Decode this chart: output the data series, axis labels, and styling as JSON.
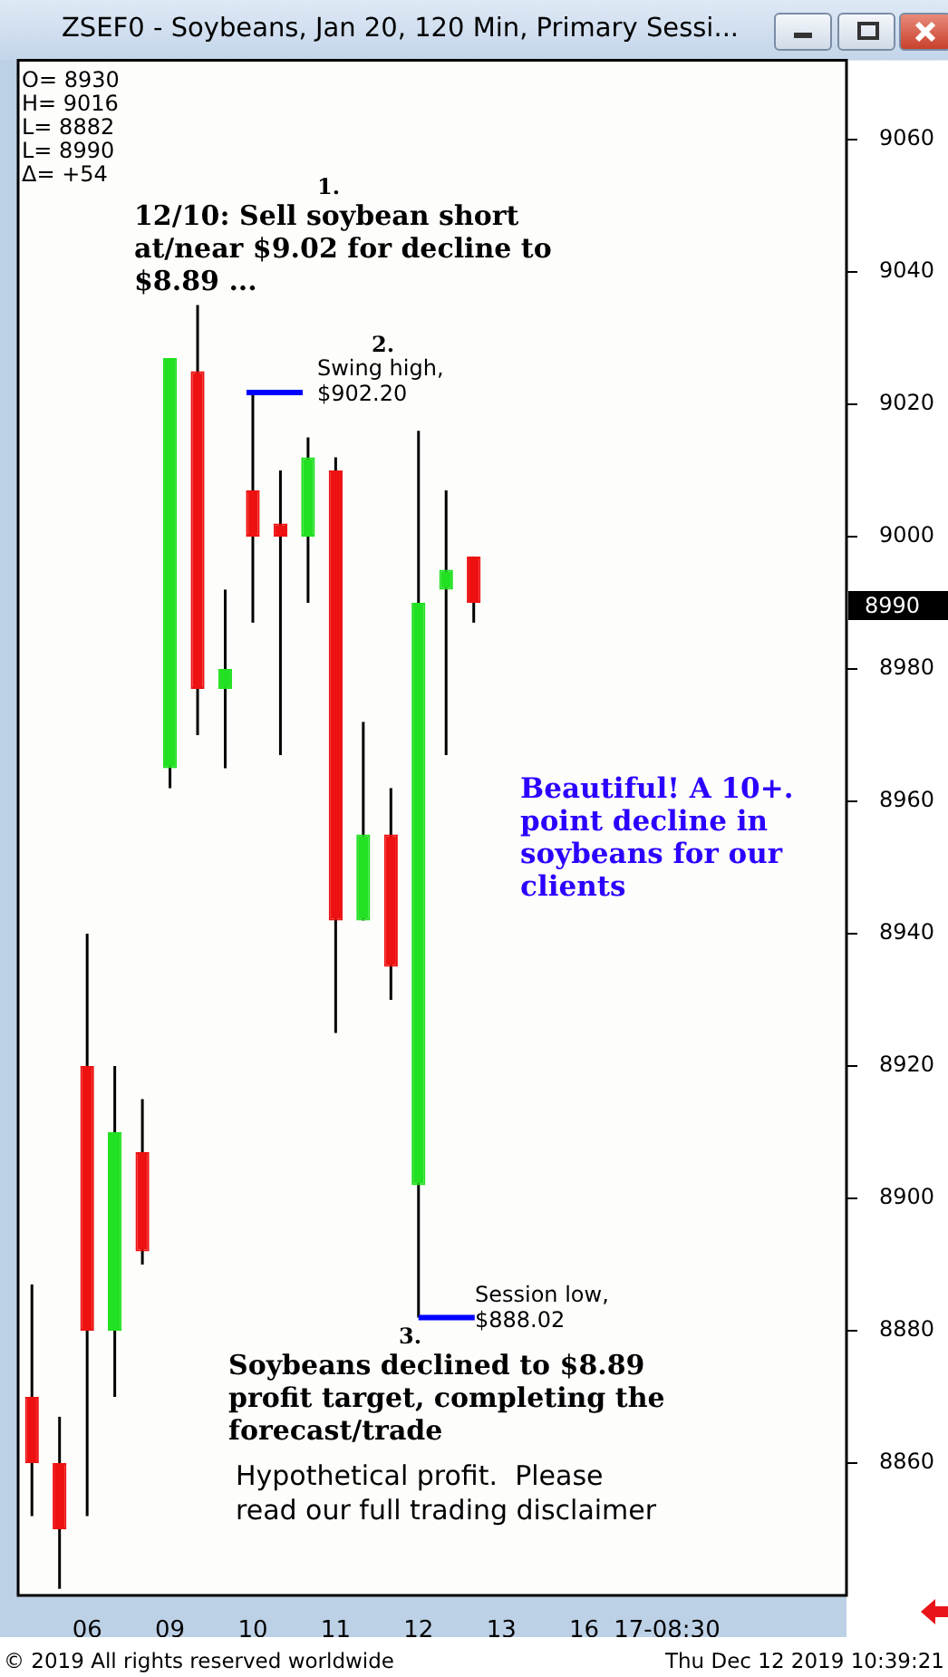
{
  "chart_data": {
    "type": "candlestick",
    "title": "ZSEF0 - Soybeans, Jan 20, 120 Min, Primary Sessi...",
    "categories": [
      null,
      null,
      "06",
      null,
      null,
      "09",
      null,
      null,
      "10",
      null,
      null,
      "11",
      null,
      null,
      "12",
      null,
      null,
      "13",
      null,
      null,
      "16",
      null,
      null,
      "17-08:30",
      null,
      null,
      null,
      null,
      null,
      null
    ],
    "ohlc": [
      [
        8870,
        8887,
        8852,
        8860
      ],
      [
        8860,
        8867,
        8841,
        8850
      ],
      [
        8920,
        8940,
        8852,
        8880
      ],
      [
        8880,
        8920,
        8870,
        8910
      ],
      [
        8907,
        8915,
        8890,
        8892
      ],
      [
        8965,
        9027,
        8962,
        9027
      ],
      [
        9025,
        9035,
        8970,
        8977
      ],
      [
        8977,
        8992,
        8965,
        8980
      ],
      [
        9007,
        9022,
        8987,
        9000
      ],
      [
        9002,
        9010,
        8967,
        9000
      ],
      [
        9000,
        9015,
        8990,
        9012
      ],
      [
        9010,
        9012,
        8925,
        8942
      ],
      [
        8942,
        8972,
        8942,
        8955
      ],
      [
        8955,
        8962,
        8930,
        8935
      ],
      [
        8902,
        9016,
        8882,
        8990
      ],
      [
        8992,
        9007,
        8967,
        8995
      ],
      [
        8997,
        8997,
        8987,
        8990
      ],
      null,
      null,
      null,
      null,
      null,
      null,
      null,
      null,
      null,
      null,
      null,
      null,
      null
    ],
    "colors": [
      "#ee1111",
      "#ee1111",
      "#ee1111",
      "#22e022",
      "#ee1111",
      "#22e022",
      "#ee1111",
      "#22e022",
      "#ee1111",
      "#ee1111",
      "#22e022",
      "#ee1111",
      "#22e022",
      "#ee1111",
      "#22e022",
      "#22e022",
      "#ee1111",
      null,
      null,
      null,
      null,
      null,
      null,
      null,
      null,
      null,
      null,
      null,
      null,
      null
    ],
    "ylim": [
      8840,
      9072
    ],
    "yticks": [
      8860,
      8880,
      8900,
      8920,
      8940,
      8960,
      8980,
      9000,
      9020,
      9040,
      9060
    ],
    "grid": false,
    "legend": false,
    "annotations": [
      "O= 8930",
      "H= 9016",
      "L= 8882",
      "L= 8990",
      "Δ= +54",
      "1.",
      "12/10: Sell soybean short at/near $9.02 for decline to $8.89 ...",
      "2.",
      "Swing high, $902.20",
      "Beautiful! A 10+. point decline in soybeans for our clients",
      {
        "text": "Session low, $888.02",
        "x": "12",
        "y": 8882
      },
      "3.",
      "Soybeans declined to $8.89 profit target, completing the forecast/trade",
      "Hypothetical profit.  Please read our full trading disclaimer",
      "© 2019 All rights reserved worldwide",
      "Thu Dec 12 2019 10:39:21",
      "8990"
    ]
  }
}
